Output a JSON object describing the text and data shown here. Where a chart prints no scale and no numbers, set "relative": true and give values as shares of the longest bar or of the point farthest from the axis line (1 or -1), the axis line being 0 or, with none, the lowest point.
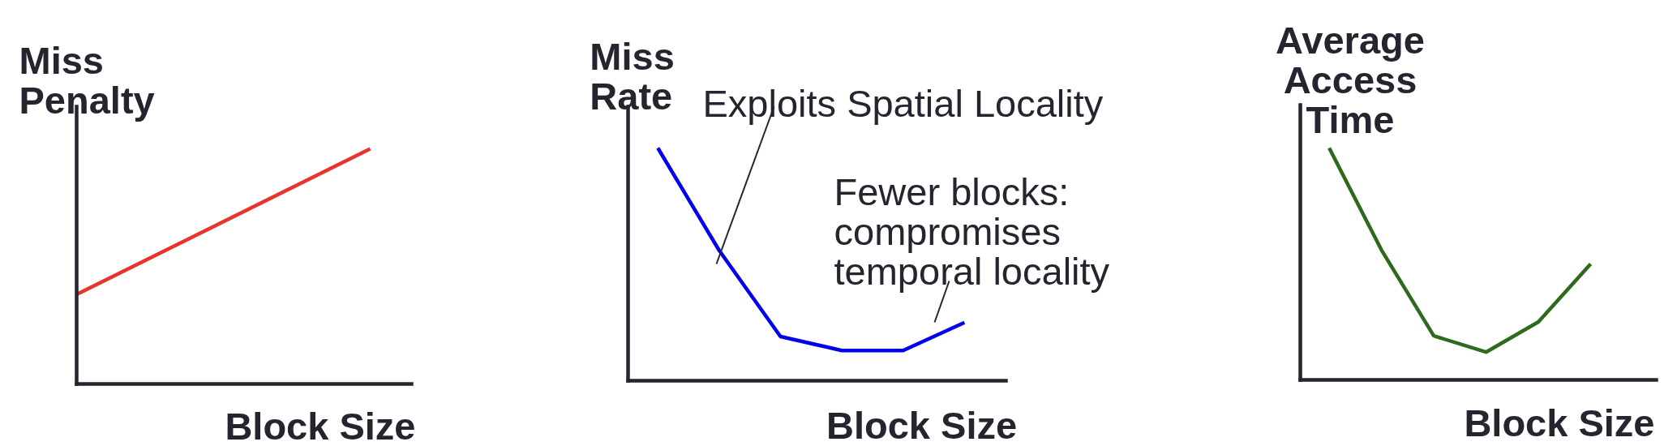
{
  "chart_data": [
    {
      "type": "line",
      "ylabel": "Miss\nPenalty",
      "xlabel": "Block Size",
      "categories": [
        null,
        null
      ],
      "relative": true,
      "series": [
        {
          "color": "#e8352b",
          "values": [
            0.38,
            1
          ]
        }
      ]
    },
    {
      "type": "line",
      "ylabel": "Miss\nRate",
      "xlabel": "Block Size",
      "categories": [
        null,
        null,
        null,
        null,
        null,
        null
      ],
      "relative": true,
      "series": [
        {
          "color": "#0000ee",
          "values": [
            1,
            0.56,
            0.19,
            0.13,
            0.13,
            0.25
          ]
        }
      ],
      "annotations": [
        "Exploits Spatial Locality",
        "Fewer blocks:\ncompromises\ntemporal locality"
      ]
    },
    {
      "type": "line",
      "ylabel": "Average\nAccess\nTime",
      "xlabel": "Block Size",
      "categories": [
        null,
        null,
        null,
        null,
        null,
        null
      ],
      "relative": true,
      "series": [
        {
          "color": "#2d6a1c",
          "values": [
            1,
            0.56,
            0.19,
            0.12,
            0.25,
            0.5
          ]
        }
      ]
    }
  ]
}
